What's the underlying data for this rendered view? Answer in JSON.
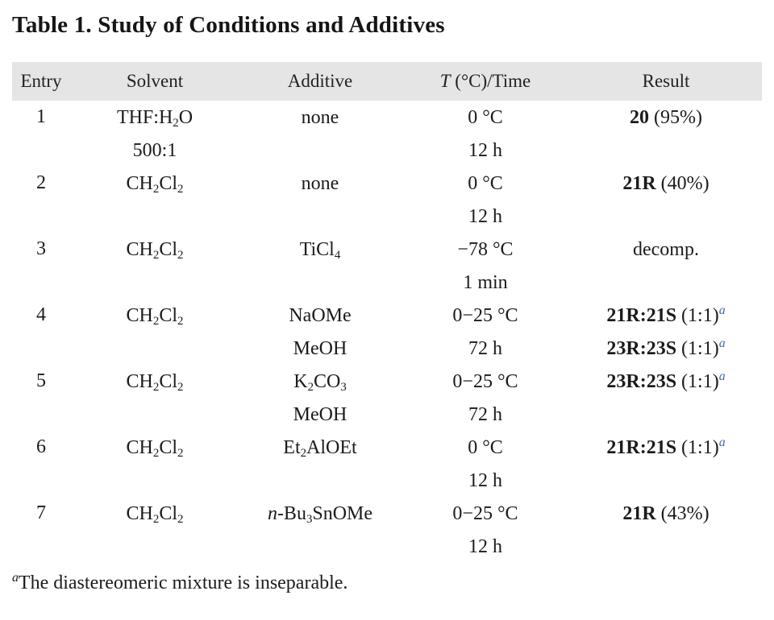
{
  "title": "Table 1. Study of Conditions and Additives",
  "colors": {
    "header_bg": "#e5e5e5",
    "body_text": "#1b1b1b",
    "result_sup_blue": "#3b6ab0"
  },
  "table": {
    "headers": {
      "entry": "Entry",
      "solvent": "Solvent",
      "additive": "Additive",
      "temp_symbol": "T",
      "temp_rest": " (°C)/Time",
      "result": "Result"
    },
    "rows": [
      {
        "entry": "1",
        "lines": [
          {
            "solvent": [
              {
                "t": "THF:H"
              },
              {
                "t": "2",
                "s": "sub"
              },
              {
                "t": "O"
              }
            ],
            "additive": [
              {
                "t": "none"
              }
            ],
            "temp": [
              {
                "t": "0 °C"
              }
            ],
            "result": [
              {
                "t": "20",
                "s": "b"
              },
              {
                "t": " (95%)"
              }
            ]
          },
          {
            "solvent": [
              {
                "t": "500:1"
              }
            ],
            "additive": [],
            "temp": [
              {
                "t": "12 h"
              }
            ],
            "result": []
          }
        ]
      },
      {
        "entry": "2",
        "lines": [
          {
            "solvent": [
              {
                "t": "CH"
              },
              {
                "t": "2",
                "s": "sub"
              },
              {
                "t": "Cl"
              },
              {
                "t": "2",
                "s": "sub"
              }
            ],
            "additive": [
              {
                "t": "none"
              }
            ],
            "temp": [
              {
                "t": "0 °C"
              }
            ],
            "result": [
              {
                "t": "21R",
                "s": "b"
              },
              {
                "t": " (40%)"
              }
            ]
          },
          {
            "solvent": [],
            "additive": [],
            "temp": [
              {
                "t": "12 h"
              }
            ],
            "result": []
          }
        ]
      },
      {
        "entry": "3",
        "lines": [
          {
            "solvent": [
              {
                "t": "CH"
              },
              {
                "t": "2",
                "s": "sub"
              },
              {
                "t": "Cl"
              },
              {
                "t": "2",
                "s": "sub"
              }
            ],
            "additive": [
              {
                "t": "TiCl"
              },
              {
                "t": "4",
                "s": "sub"
              }
            ],
            "temp": [
              {
                "t": "−78 °C"
              }
            ],
            "result": [
              {
                "t": "decomp."
              }
            ]
          },
          {
            "solvent": [],
            "additive": [],
            "temp": [
              {
                "t": "1 min"
              }
            ],
            "result": []
          }
        ]
      },
      {
        "entry": "4",
        "lines": [
          {
            "solvent": [
              {
                "t": "CH"
              },
              {
                "t": "2",
                "s": "sub"
              },
              {
                "t": "Cl"
              },
              {
                "t": "2",
                "s": "sub"
              }
            ],
            "additive": [
              {
                "t": "NaOMe"
              }
            ],
            "temp": [
              {
                "t": "0−25 °C"
              }
            ],
            "result": [
              {
                "t": "21R:21S",
                "s": "b"
              },
              {
                "t": " (1:1)"
              },
              {
                "t": "a",
                "s": "sup"
              }
            ]
          },
          {
            "solvent": [],
            "additive": [
              {
                "t": "MeOH"
              }
            ],
            "temp": [
              {
                "t": "72 h"
              }
            ],
            "result": [
              {
                "t": "23R:23S",
                "s": "b"
              },
              {
                "t": " (1:1)"
              },
              {
                "t": "a",
                "s": "sup"
              }
            ]
          }
        ]
      },
      {
        "entry": "5",
        "lines": [
          {
            "solvent": [
              {
                "t": "CH"
              },
              {
                "t": "2",
                "s": "sub"
              },
              {
                "t": "Cl"
              },
              {
                "t": "2",
                "s": "sub"
              }
            ],
            "additive": [
              {
                "t": "K"
              },
              {
                "t": "2",
                "s": "sub"
              },
              {
                "t": "CO"
              },
              {
                "t": "3",
                "s": "sub"
              }
            ],
            "temp": [
              {
                "t": "0−25 °C"
              }
            ],
            "result": [
              {
                "t": "23R:23S",
                "s": "b"
              },
              {
                "t": " (1:1)"
              },
              {
                "t": "a",
                "s": "sup"
              }
            ]
          },
          {
            "solvent": [],
            "additive": [
              {
                "t": "MeOH"
              }
            ],
            "temp": [
              {
                "t": "72 h"
              }
            ],
            "result": []
          }
        ]
      },
      {
        "entry": "6",
        "lines": [
          {
            "solvent": [
              {
                "t": "CH"
              },
              {
                "t": "2",
                "s": "sub"
              },
              {
                "t": "Cl"
              },
              {
                "t": "2",
                "s": "sub"
              }
            ],
            "additive": [
              {
                "t": "Et"
              },
              {
                "t": "2",
                "s": "sub"
              },
              {
                "t": "AlOEt"
              }
            ],
            "temp": [
              {
                "t": "0 °C"
              }
            ],
            "result": [
              {
                "t": "21R:21S",
                "s": "b"
              },
              {
                "t": " (1:1)"
              },
              {
                "t": "a",
                "s": "sup"
              }
            ]
          },
          {
            "solvent": [],
            "additive": [],
            "temp": [
              {
                "t": "12 h"
              }
            ],
            "result": []
          }
        ]
      },
      {
        "entry": "7",
        "lines": [
          {
            "solvent": [
              {
                "t": "CH"
              },
              {
                "t": "2",
                "s": "sub"
              },
              {
                "t": "Cl"
              },
              {
                "t": "2",
                "s": "sub"
              }
            ],
            "additive": [
              {
                "t": "n",
                "s": "i"
              },
              {
                "t": "-Bu"
              },
              {
                "t": "3",
                "s": "sub"
              },
              {
                "t": "SnOMe"
              }
            ],
            "temp": [
              {
                "t": "0−25 °C"
              }
            ],
            "result": [
              {
                "t": "21R",
                "s": "b"
              },
              {
                "t": " (43%)"
              }
            ]
          },
          {
            "solvent": [],
            "additive": [],
            "temp": [
              {
                "t": "12 h"
              }
            ],
            "result": []
          }
        ]
      }
    ]
  },
  "footnote": {
    "marker": "a",
    "text": "The diastereomeric mixture is inseparable."
  }
}
